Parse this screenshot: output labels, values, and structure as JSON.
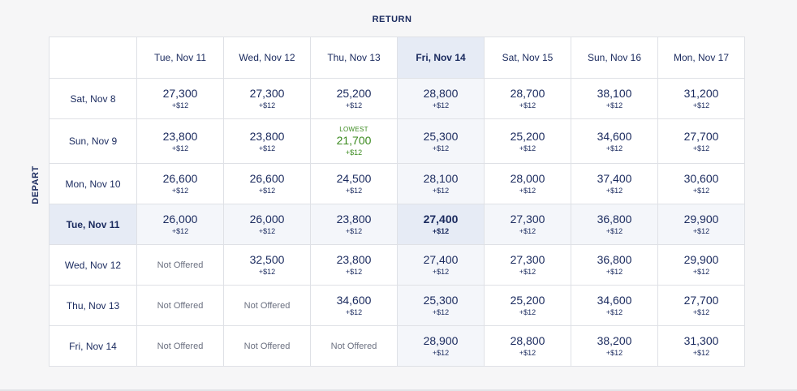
{
  "return_label": "RETURN",
  "depart_label": "DEPART",
  "columns": [
    "Tue, Nov 11",
    "Wed, Nov 12",
    "Thu, Nov 13",
    "Fri, Nov 14",
    "Sat, Nov 15",
    "Sun, Nov 16",
    "Mon, Nov 17"
  ],
  "selected_return_index": 3,
  "selected_depart_index": 3,
  "lowest_label": "LOWEST",
  "rows": [
    {
      "depart": "Sat, Nov 8",
      "cells": [
        {
          "price": "27,300",
          "tax": "+$12"
        },
        {
          "price": "27,300",
          "tax": "+$12"
        },
        {
          "price": "25,200",
          "tax": "+$12"
        },
        {
          "price": "28,800",
          "tax": "+$12"
        },
        {
          "price": "28,700",
          "tax": "+$12"
        },
        {
          "price": "38,100",
          "tax": "+$12"
        },
        {
          "price": "31,200",
          "tax": "+$12"
        }
      ]
    },
    {
      "depart": "Sun, Nov 9",
      "cells": [
        {
          "price": "23,800",
          "tax": "+$12"
        },
        {
          "price": "23,800",
          "tax": "+$12"
        },
        {
          "price": "21,700",
          "tax": "+$12",
          "lowest": true
        },
        {
          "price": "25,300",
          "tax": "+$12"
        },
        {
          "price": "25,200",
          "tax": "+$12"
        },
        {
          "price": "34,600",
          "tax": "+$12"
        },
        {
          "price": "27,700",
          "tax": "+$12"
        }
      ]
    },
    {
      "depart": "Mon, Nov 10",
      "cells": [
        {
          "price": "26,600",
          "tax": "+$12"
        },
        {
          "price": "26,600",
          "tax": "+$12"
        },
        {
          "price": "24,500",
          "tax": "+$12"
        },
        {
          "price": "28,100",
          "tax": "+$12"
        },
        {
          "price": "28,000",
          "tax": "+$12"
        },
        {
          "price": "37,400",
          "tax": "+$12"
        },
        {
          "price": "30,600",
          "tax": "+$12"
        }
      ]
    },
    {
      "depart": "Tue, Nov 11",
      "cells": [
        {
          "price": "26,000",
          "tax": "+$12"
        },
        {
          "price": "26,000",
          "tax": "+$12"
        },
        {
          "price": "23,800",
          "tax": "+$12"
        },
        {
          "price": "27,400",
          "tax": "+$12"
        },
        {
          "price": "27,300",
          "tax": "+$12"
        },
        {
          "price": "36,800",
          "tax": "+$12"
        },
        {
          "price": "29,900",
          "tax": "+$12"
        }
      ]
    },
    {
      "depart": "Wed, Nov 12",
      "cells": [
        {
          "na": "Not Offered"
        },
        {
          "price": "32,500",
          "tax": "+$12"
        },
        {
          "price": "23,800",
          "tax": "+$12"
        },
        {
          "price": "27,400",
          "tax": "+$12"
        },
        {
          "price": "27,300",
          "tax": "+$12"
        },
        {
          "price": "36,800",
          "tax": "+$12"
        },
        {
          "price": "29,900",
          "tax": "+$12"
        }
      ]
    },
    {
      "depart": "Thu, Nov 13",
      "cells": [
        {
          "na": "Not Offered"
        },
        {
          "na": "Not Offered"
        },
        {
          "price": "34,600",
          "tax": "+$12"
        },
        {
          "price": "25,300",
          "tax": "+$12"
        },
        {
          "price": "25,200",
          "tax": "+$12"
        },
        {
          "price": "34,600",
          "tax": "+$12"
        },
        {
          "price": "27,700",
          "tax": "+$12"
        }
      ]
    },
    {
      "depart": "Fri, Nov 14",
      "cells": [
        {
          "na": "Not Offered"
        },
        {
          "na": "Not Offered"
        },
        {
          "na": "Not Offered"
        },
        {
          "price": "28,900",
          "tax": "+$12"
        },
        {
          "price": "28,800",
          "tax": "+$12"
        },
        {
          "price": "38,200",
          "tax": "+$12"
        },
        {
          "price": "31,300",
          "tax": "+$12"
        }
      ]
    }
  ]
}
